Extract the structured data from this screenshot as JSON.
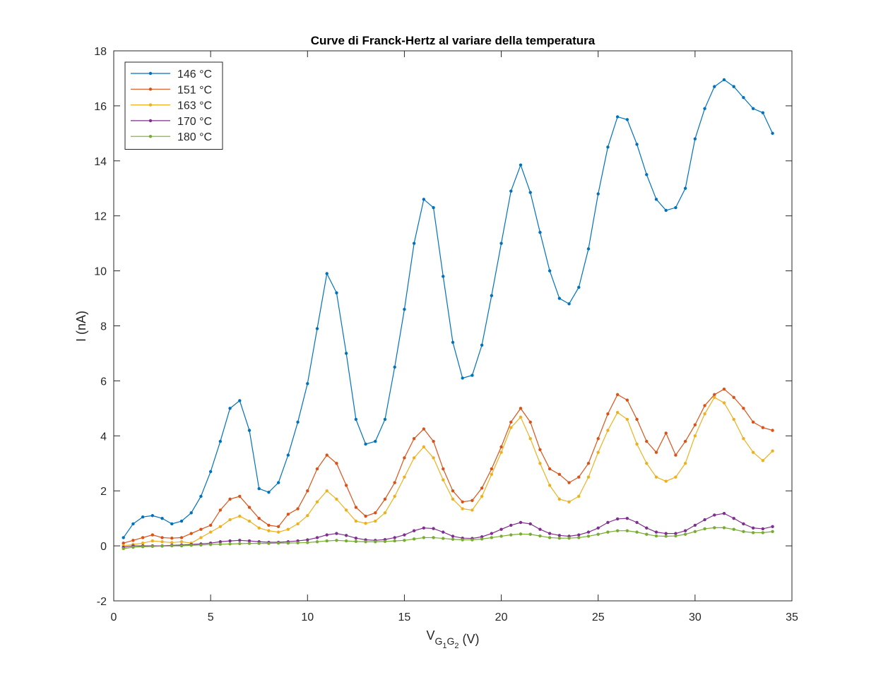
{
  "chart_data": {
    "type": "line",
    "title": "Curve di Franck-Hertz al variare della temperatura",
    "xlabel": [
      "V",
      "G",
      "1",
      "G",
      "2",
      " (V)"
    ],
    "ylabel": "I (nA)",
    "xlim": [
      0,
      35
    ],
    "xticks": [
      0,
      5,
      10,
      15,
      20,
      25,
      30,
      35
    ],
    "ylim": [
      -2,
      18
    ],
    "yticks": [
      -2,
      0,
      2,
      4,
      6,
      8,
      10,
      12,
      14,
      16,
      18
    ],
    "legend": "northwest",
    "box": true,
    "x": [
      0.5,
      1,
      1.5,
      2,
      2.5,
      3,
      3.5,
      4,
      4.5,
      5,
      5.5,
      6,
      6.5,
      7,
      7.5,
      8,
      8.5,
      9,
      9.5,
      10,
      10.5,
      11,
      11.5,
      12,
      12.5,
      13,
      13.5,
      14,
      14.5,
      15,
      15.5,
      16,
      16.5,
      17,
      17.5,
      18,
      18.5,
      19,
      19.5,
      20,
      20.5,
      21,
      21.5,
      22,
      22.5,
      23,
      23.5,
      24,
      24.5,
      25,
      25.5,
      26,
      26.5,
      27,
      27.5,
      28,
      28.5,
      29,
      29.5,
      30,
      30.5,
      31,
      31.5,
      32,
      32.5,
      33,
      33.5,
      34
    ],
    "series": [
      {
        "name": "146 °C",
        "color": "#0072BD",
        "values": [
          0.3,
          0.8,
          1.05,
          1.1,
          1.0,
          0.8,
          0.9,
          1.2,
          1.8,
          2.7,
          3.8,
          5.0,
          5.28,
          4.2,
          2.08,
          1.95,
          2.3,
          3.3,
          4.5,
          5.9,
          7.9,
          9.9,
          9.2,
          7.0,
          4.6,
          3.7,
          3.8,
          4.6,
          6.5,
          8.6,
          11.0,
          12.6,
          12.3,
          9.8,
          7.4,
          6.1,
          6.2,
          7.3,
          9.1,
          11.0,
          12.9,
          13.85,
          12.85,
          11.4,
          10.0,
          9.0,
          8.8,
          9.4,
          10.8,
          12.8,
          14.5,
          15.6,
          15.5,
          14.6,
          13.5,
          12.6,
          12.2,
          12.3,
          13.0,
          14.8,
          15.9,
          16.7,
          16.95,
          16.7,
          16.3,
          15.9,
          15.75,
          15.0
        ]
      },
      {
        "name": "151 °C",
        "color": "#D95319",
        "values": [
          0.1,
          0.2,
          0.3,
          0.4,
          0.3,
          0.28,
          0.3,
          0.45,
          0.6,
          0.75,
          1.3,
          1.7,
          1.8,
          1.4,
          1.0,
          0.75,
          0.7,
          1.15,
          1.35,
          2.0,
          2.8,
          3.3,
          3.0,
          2.2,
          1.4,
          1.08,
          1.2,
          1.7,
          2.3,
          3.2,
          3.9,
          4.25,
          3.8,
          2.8,
          2.0,
          1.6,
          1.65,
          2.1,
          2.8,
          3.6,
          4.5,
          5.0,
          4.5,
          3.5,
          2.8,
          2.6,
          2.3,
          2.5,
          3.0,
          3.9,
          4.8,
          5.5,
          5.3,
          4.6,
          3.8,
          3.4,
          4.1,
          3.3,
          3.8,
          4.4,
          5.1,
          5.5,
          5.7,
          5.4,
          5.0,
          4.5,
          4.3,
          4.2
        ]
      },
      {
        "name": "163 °C",
        "color": "#EDB120",
        "values": [
          0.0,
          0.05,
          0.1,
          0.18,
          0.15,
          0.12,
          0.15,
          0.1,
          0.3,
          0.5,
          0.7,
          0.95,
          1.08,
          0.9,
          0.65,
          0.55,
          0.5,
          0.6,
          0.8,
          1.1,
          1.6,
          2.0,
          1.7,
          1.3,
          0.9,
          0.82,
          0.9,
          1.2,
          1.8,
          2.5,
          3.2,
          3.6,
          3.2,
          2.4,
          1.7,
          1.35,
          1.3,
          1.8,
          2.6,
          3.4,
          4.3,
          4.68,
          3.9,
          3.0,
          2.2,
          1.7,
          1.6,
          1.8,
          2.5,
          3.4,
          4.2,
          4.85,
          4.6,
          3.7,
          3.0,
          2.5,
          2.35,
          2.5,
          3.0,
          4.0,
          4.8,
          5.4,
          5.2,
          4.6,
          3.9,
          3.4,
          3.1,
          3.45
        ]
      },
      {
        "name": "170 °C",
        "color": "#7E2F8E",
        "values": [
          -0.05,
          0.0,
          0.0,
          0.0,
          0.0,
          0.02,
          0.03,
          0.05,
          0.07,
          0.1,
          0.15,
          0.18,
          0.2,
          0.18,
          0.15,
          0.13,
          0.13,
          0.15,
          0.18,
          0.22,
          0.3,
          0.4,
          0.45,
          0.38,
          0.28,
          0.22,
          0.2,
          0.23,
          0.3,
          0.4,
          0.55,
          0.65,
          0.63,
          0.5,
          0.35,
          0.28,
          0.27,
          0.33,
          0.45,
          0.6,
          0.75,
          0.85,
          0.8,
          0.6,
          0.45,
          0.38,
          0.35,
          0.4,
          0.5,
          0.65,
          0.85,
          0.98,
          1.0,
          0.85,
          0.65,
          0.5,
          0.45,
          0.45,
          0.55,
          0.75,
          0.95,
          1.12,
          1.18,
          1.0,
          0.8,
          0.65,
          0.62,
          0.7
        ]
      },
      {
        "name": "180 °C",
        "color": "#77AC30",
        "values": [
          -0.1,
          -0.05,
          -0.03,
          -0.02,
          -0.01,
          0.0,
          0.0,
          0.02,
          0.03,
          0.05,
          0.06,
          0.07,
          0.08,
          0.09,
          0.09,
          0.09,
          0.1,
          0.1,
          0.11,
          0.12,
          0.15,
          0.18,
          0.2,
          0.18,
          0.16,
          0.15,
          0.15,
          0.16,
          0.18,
          0.2,
          0.25,
          0.3,
          0.3,
          0.27,
          0.24,
          0.22,
          0.22,
          0.25,
          0.3,
          0.35,
          0.4,
          0.43,
          0.42,
          0.36,
          0.3,
          0.28,
          0.28,
          0.3,
          0.35,
          0.42,
          0.5,
          0.55,
          0.55,
          0.5,
          0.42,
          0.36,
          0.35,
          0.36,
          0.42,
          0.52,
          0.62,
          0.66,
          0.66,
          0.6,
          0.52,
          0.48,
          0.48,
          0.52
        ]
      }
    ]
  }
}
